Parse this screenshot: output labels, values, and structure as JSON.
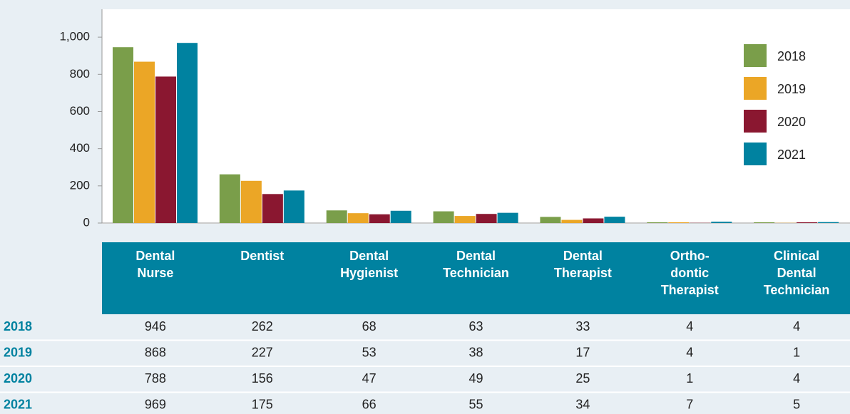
{
  "chart_data": {
    "type": "bar",
    "categories": [
      "Dental\nNurse",
      "Dentist",
      "Dental\nHygienist",
      "Dental\nTechnician",
      "Dental\nTherapist",
      "Ortho-\ndontic\nTherapist",
      "Clinical\nDental\nTechnician"
    ],
    "series": [
      {
        "name": "2018",
        "color": "#7a9e4a",
        "values": [
          946,
          262,
          68,
          63,
          33,
          4,
          4
        ]
      },
      {
        "name": "2019",
        "color": "#eba626",
        "values": [
          868,
          227,
          53,
          38,
          17,
          4,
          1
        ]
      },
      {
        "name": "2020",
        "color": "#8a1730",
        "values": [
          788,
          156,
          47,
          49,
          25,
          1,
          4
        ]
      },
      {
        "name": "2021",
        "color": "#0082a0",
        "values": [
          969,
          175,
          66,
          55,
          34,
          7,
          5
        ]
      }
    ],
    "ylim": [
      0,
      1150
    ],
    "yticks": [
      0,
      200,
      400,
      600,
      800,
      {
        "value": 1000,
        "label": "1,000"
      }
    ],
    "legend": "right",
    "grid": false
  }
}
